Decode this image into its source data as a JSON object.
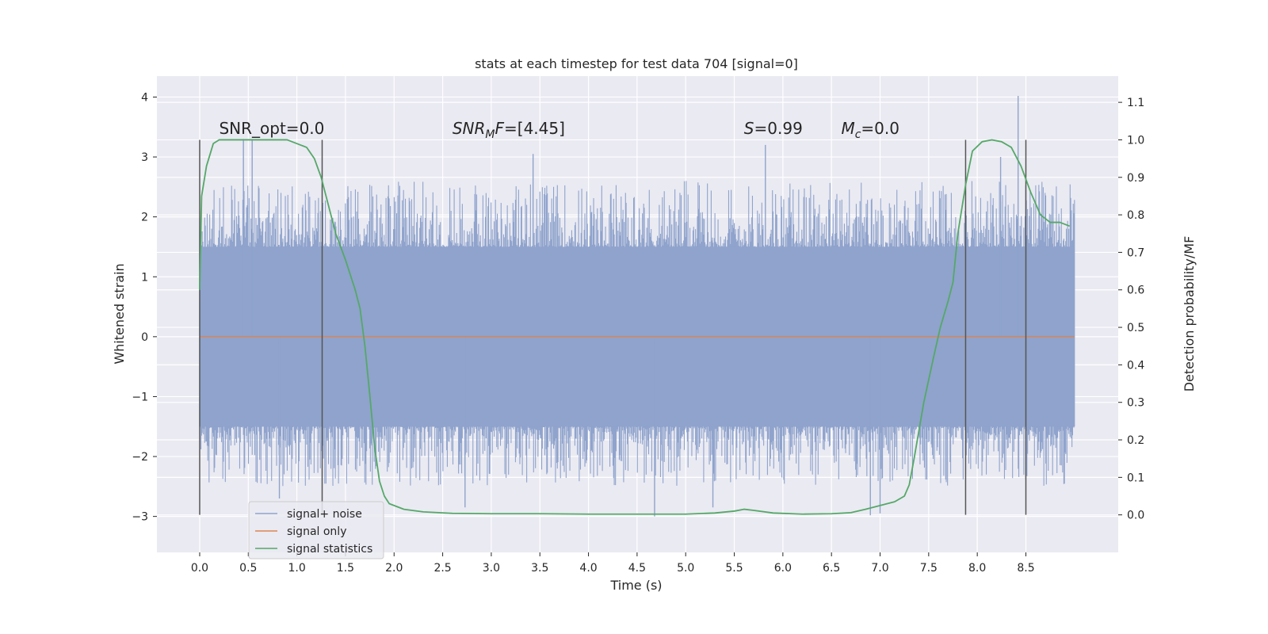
{
  "chart_data": {
    "type": "line",
    "title": "stats at each timestep for test data 704 [signal=0]",
    "xlabel": "Time (s)",
    "ylabel": "Whitened strain",
    "y2label": "Detection probability/MF",
    "xlim": [
      -0.44,
      9.45
    ],
    "ylim": [
      -3.6,
      4.35
    ],
    "y2lim": [
      -0.1,
      1.17
    ],
    "xticks": [
      0.0,
      0.5,
      1.0,
      1.5,
      2.0,
      2.5,
      3.0,
      3.5,
      4.0,
      4.5,
      5.0,
      5.5,
      6.0,
      6.5,
      7.0,
      7.5,
      8.0,
      8.5
    ],
    "xtick_labels": [
      "0.0",
      "0.5",
      "1.0",
      "1.5",
      "2.0",
      "2.5",
      "3.0",
      "3.5",
      "4.0",
      "4.5",
      "5.0",
      "5.5",
      "6.0",
      "6.5",
      "7.0",
      "7.5",
      "8.0",
      "8.5"
    ],
    "yticks": [
      4,
      3,
      2,
      1,
      0,
      -1,
      -2,
      -3
    ],
    "ytick_labels": [
      "4",
      "3",
      "2",
      "1",
      "0",
      "−1",
      "−2",
      "−3"
    ],
    "y2ticks": [
      1.1,
      1.0,
      0.9,
      0.8,
      0.7,
      0.6,
      0.5,
      0.4,
      0.3,
      0.2,
      0.1,
      0.0
    ],
    "y2tick_labels": [
      "1.1",
      "1.0",
      "0.9",
      "0.8",
      "0.7",
      "0.6",
      "0.5",
      "0.4",
      "0.3",
      "0.2",
      "0.1",
      "0.0"
    ],
    "annotations": [
      {
        "name": "snr-opt",
        "text": "SNR_opt=0.0",
        "x": 0.2
      },
      {
        "name": "snr-mf",
        "text": "SNR_MF=[4.45]",
        "prefix": "SNR",
        "sub": "M",
        "suffix": "F=[4.45]",
        "x": 2.6
      },
      {
        "name": "s-stat",
        "text": "S=0.99",
        "prefix": "S",
        "suffix": "=0.99",
        "x": 5.6
      },
      {
        "name": "mc-stat",
        "text": "M_c=0.0",
        "prefix": "M",
        "sub": "c",
        "suffix": "=0.0",
        "x": 6.6
      }
    ],
    "annotation_y": 3.25,
    "vlines": {
      "x": [
        0.0,
        1.26,
        7.88,
        8.5
      ],
      "y2_range": [
        0.0,
        1.0
      ]
    },
    "series": [
      {
        "name": "signal+ noise",
        "color": "#8fa3cc",
        "x_range": [
          0.0,
          9.0
        ],
        "typical_band": [
          -1.5,
          1.5
        ],
        "extremes": [
          -3.0,
          4.0
        ],
        "peaks": [
          {
            "x": 0.45,
            "y": 3.3
          },
          {
            "x": 0.54,
            "y": 3.3
          },
          {
            "x": 0.82,
            "y": -2.7
          },
          {
            "x": 2.73,
            "y": -2.85
          },
          {
            "x": 3.43,
            "y": 3.05
          },
          {
            "x": 4.68,
            "y": -3.0
          },
          {
            "x": 5.28,
            "y": -2.85
          },
          {
            "x": 5.82,
            "y": 3.2
          },
          {
            "x": 6.9,
            "y": -2.98
          },
          {
            "x": 7.0,
            "y": -2.95
          },
          {
            "x": 8.42,
            "y": 4.02
          },
          {
            "x": 8.24,
            "y": 3.0
          }
        ]
      },
      {
        "name": "signal only",
        "color": "#dd8452",
        "x": [
          0.0,
          9.0
        ],
        "y": [
          0.0,
          0.0
        ]
      },
      {
        "name": "signal statistics",
        "color": "#55a868",
        "axis": "right",
        "x": [
          0.0,
          0.02,
          0.07,
          0.14,
          0.2,
          0.3,
          0.5,
          0.7,
          0.9,
          1.0,
          1.1,
          1.18,
          1.25,
          1.3,
          1.4,
          1.5,
          1.6,
          1.65,
          1.7,
          1.75,
          1.8,
          1.85,
          1.9,
          1.95,
          2.0,
          2.1,
          2.3,
          2.6,
          3.0,
          3.5,
          4.0,
          4.5,
          5.0,
          5.3,
          5.5,
          5.6,
          5.7,
          5.9,
          6.2,
          6.5,
          6.7,
          6.85,
          7.0,
          7.15,
          7.25,
          7.3,
          7.35,
          7.45,
          7.55,
          7.62,
          7.7,
          7.75,
          7.8,
          7.88,
          7.95,
          8.05,
          8.15,
          8.25,
          8.35,
          8.45,
          8.55,
          8.65,
          8.75,
          8.85,
          8.95
        ],
        "y": [
          0.6,
          0.85,
          0.93,
          0.99,
          1.0,
          1.0,
          1.0,
          1.0,
          1.0,
          0.99,
          0.98,
          0.95,
          0.9,
          0.85,
          0.75,
          0.68,
          0.6,
          0.55,
          0.45,
          0.32,
          0.18,
          0.09,
          0.05,
          0.03,
          0.025,
          0.015,
          0.008,
          0.004,
          0.003,
          0.003,
          0.002,
          0.002,
          0.002,
          0.005,
          0.01,
          0.015,
          0.012,
          0.005,
          0.002,
          0.003,
          0.006,
          0.015,
          0.025,
          0.035,
          0.05,
          0.08,
          0.15,
          0.3,
          0.42,
          0.5,
          0.57,
          0.62,
          0.75,
          0.88,
          0.97,
          0.995,
          1.0,
          0.995,
          0.98,
          0.93,
          0.86,
          0.8,
          0.78,
          0.78,
          0.77
        ]
      }
    ],
    "legend_position": "lower-left",
    "grid": true
  }
}
